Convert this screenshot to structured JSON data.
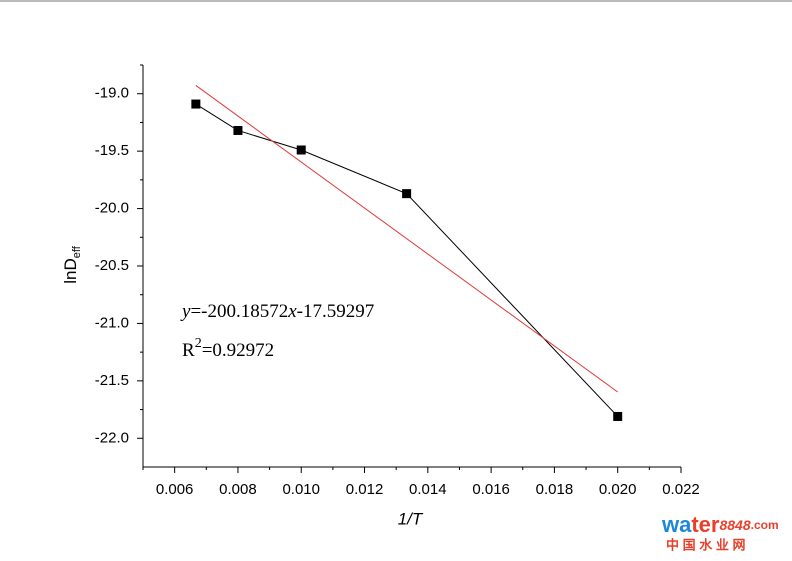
{
  "chart_data": {
    "type": "line",
    "x_label": "1/T",
    "y_label": {
      "main": "lnD",
      "sub": "eff"
    },
    "equation": [
      "y",
      "=-200.18572",
      "x",
      "-17.59297"
    ],
    "r_squared": {
      "base": "R",
      "sup": "2",
      "rest": "=0.92972"
    },
    "xlim": [
      0.005,
      0.022
    ],
    "xticks": [
      0.006,
      0.008,
      {
        "value": 0.01,
        "label": "0.010"
      },
      0.012,
      0.014,
      0.016,
      0.018,
      {
        "value": 0.02,
        "label": "0.020"
      },
      0.022
    ],
    "ylim": [
      -22.25,
      -18.75
    ],
    "yticks": [
      {
        "value": -19,
        "label": "-19.0"
      },
      -19.5,
      {
        "value": -20,
        "label": "-20.0"
      },
      -20.5,
      {
        "value": -21,
        "label": "-21.0"
      },
      -21.5,
      {
        "value": -22,
        "label": "-22.0"
      }
    ],
    "series": [
      {
        "x": [
          0.00667,
          0.008,
          0.01,
          0.01333,
          0.02
        ],
        "values": [
          -19.09,
          -19.32,
          -19.49,
          -19.87,
          -21.81
        ],
        "color": "#000000",
        "marker": "square"
      },
      {
        "x": [
          0.00667,
          0.02
        ],
        "values": [
          -18.928,
          -21.597
        ],
        "color": "#e03a3a"
      }
    ],
    "watermark": {
      "a": "wa",
      "b": "ter",
      "c": "8848",
      "d": ".com",
      "e": "中 国 水 业 网"
    }
  }
}
